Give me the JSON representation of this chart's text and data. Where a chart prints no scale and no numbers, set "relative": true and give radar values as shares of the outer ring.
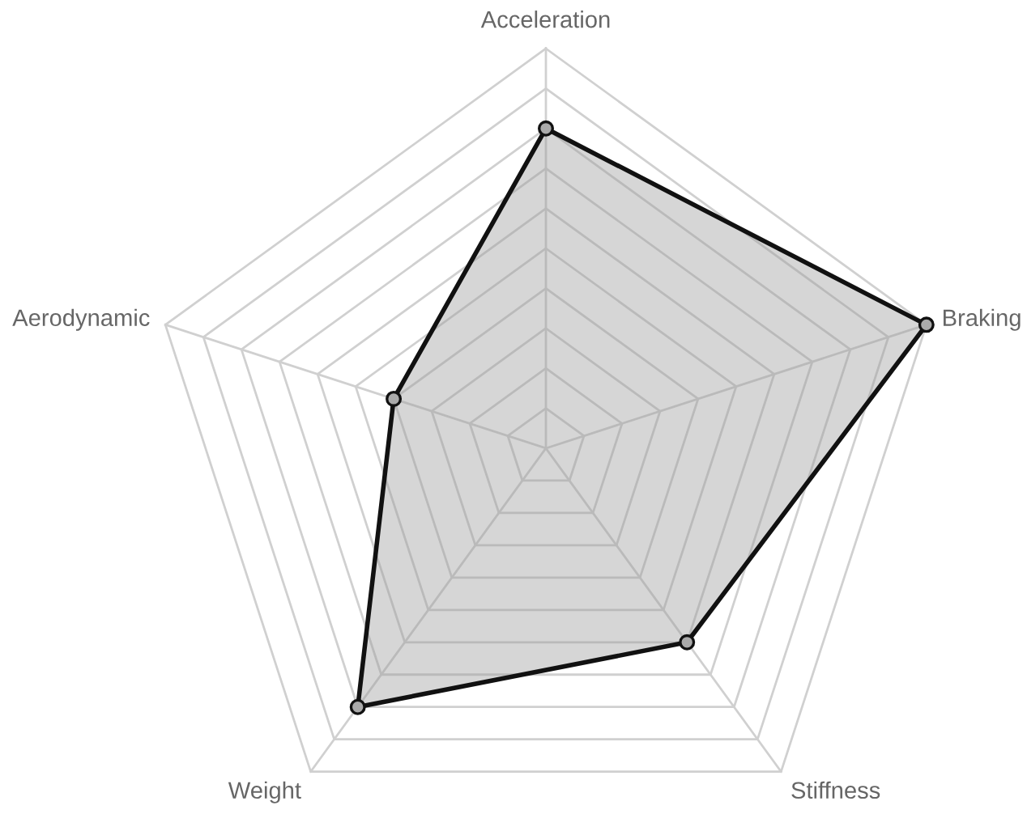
{
  "chart_data": {
    "type": "radar",
    "relative": true,
    "grid": true,
    "marker": "circle",
    "line_style": "solid",
    "categories": [
      "Acceleration",
      "Braking",
      "Stiffness",
      "Weight",
      "Aerodynamic"
    ],
    "series": [
      {
        "color": "#111111",
        "values": [
          0.8,
          1.0,
          0.6,
          0.8,
          0.4
        ]
      }
    ]
  }
}
